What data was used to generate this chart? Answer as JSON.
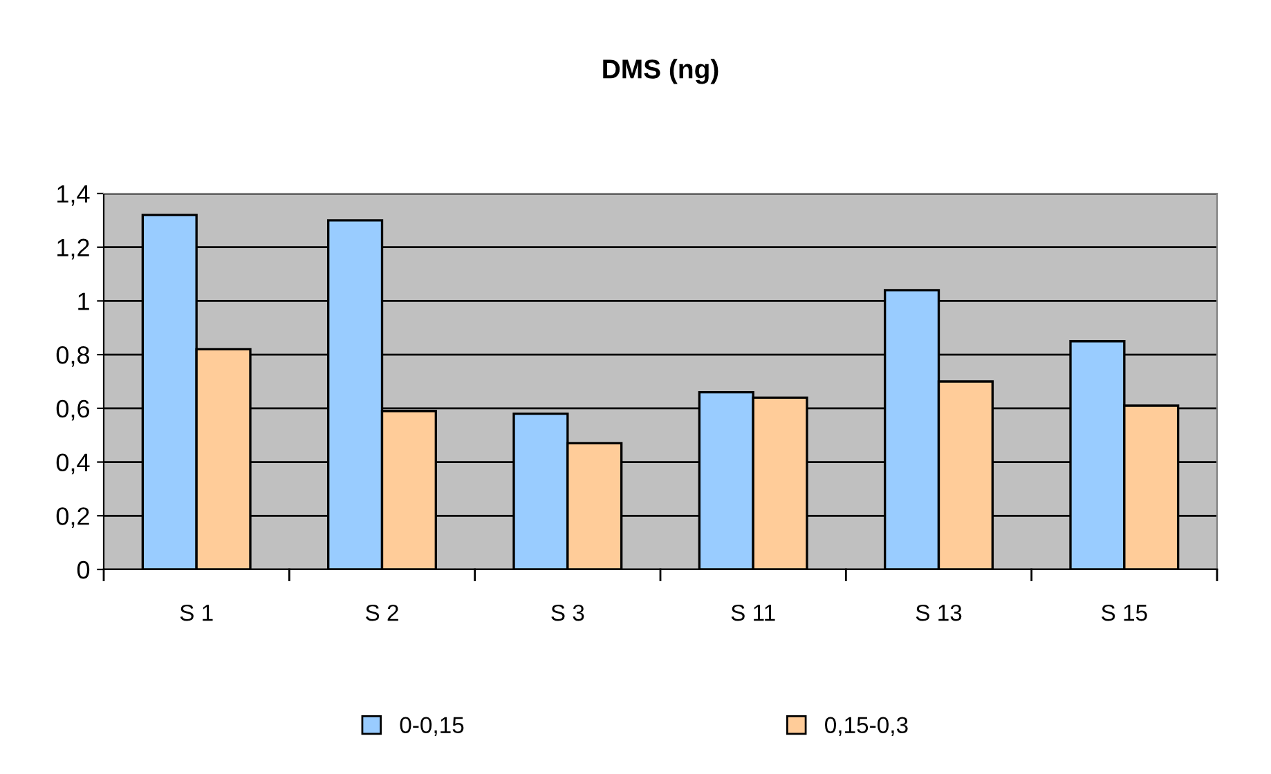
{
  "chart_data": {
    "type": "bar",
    "title": "DMS (ng)",
    "categories": [
      "S 1",
      "S 2",
      "S 3",
      "S 11",
      "S 13",
      "S 15"
    ],
    "series": [
      {
        "name": "0-0,15",
        "color": "#99ccff",
        "values": [
          1.32,
          1.3,
          0.58,
          0.66,
          1.04,
          0.85
        ]
      },
      {
        "name": "0,15-0,3",
        "color": "#ffcc99",
        "values": [
          0.82,
          0.59,
          0.47,
          0.64,
          0.7,
          0.61
        ]
      }
    ],
    "ylim": [
      0,
      1.4
    ],
    "yticks": [
      0,
      {
        "value": 0.2,
        "label": "0,2"
      },
      {
        "value": 0.4,
        "label": "0,4"
      },
      {
        "value": 0.6,
        "label": "0,6"
      },
      {
        "value": 0.8,
        "label": "0,8"
      },
      1,
      {
        "value": 1.2,
        "label": "1,2"
      },
      {
        "value": 1.4,
        "label": "1,4"
      }
    ],
    "grid": "y",
    "legend": "bottom"
  }
}
